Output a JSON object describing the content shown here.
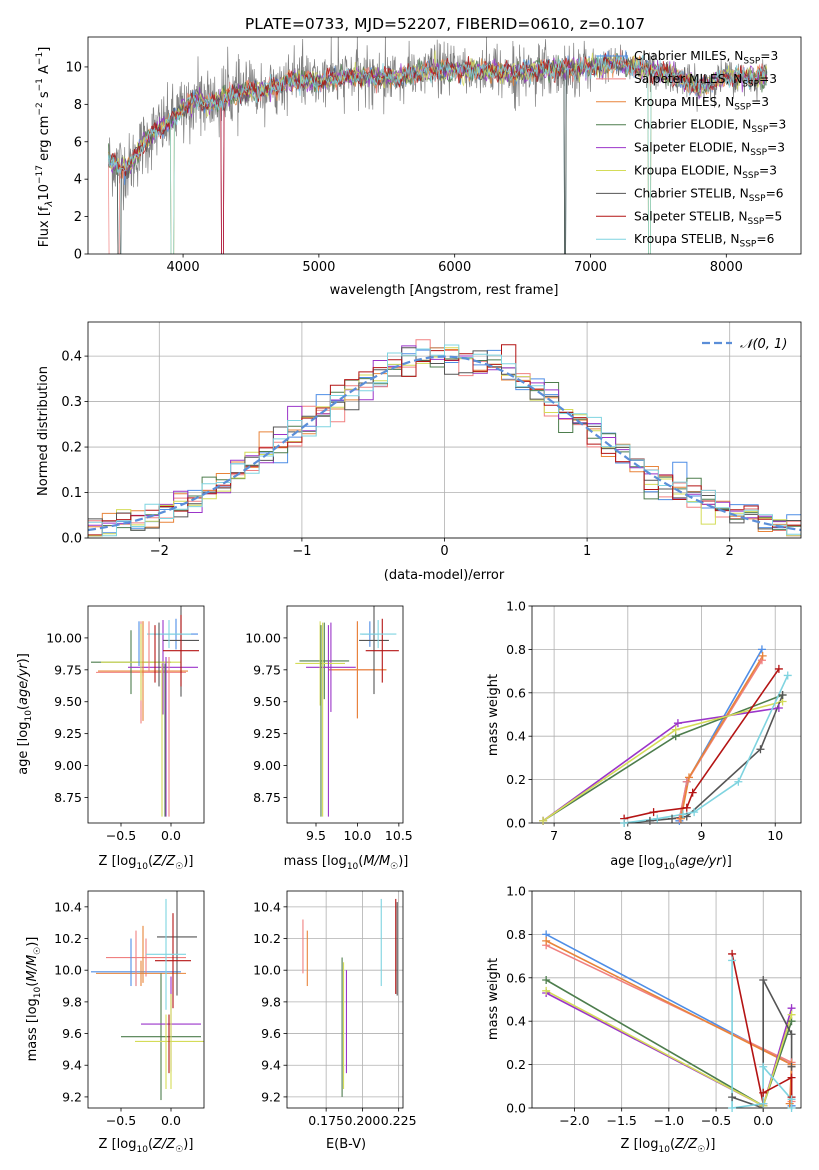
{
  "figure_title": "PLATE=0733, MJD=52207, FIBERID=0610, z=0.107",
  "colors": {
    "chabrier_miles": "#4f8ee6",
    "salpeter_miles": "#f08080",
    "kroupa_miles": "#e8843a",
    "chabrier_elodie": "#4d7d4d",
    "salpeter_elodie": "#9b35c9",
    "kroupa_elodie": "#d4dc58",
    "chabrier_stelib": "#555555",
    "salpeter_stelib": "#b41414",
    "kroupa_stelib": "#7fd4e0",
    "data": "#808080"
  },
  "chart_data": [
    {
      "id": "spectrum",
      "type": "line",
      "xlabel": "wavelength [Angstrom, rest frame]",
      "ylabel": "Flux [f_λ10⁻¹⁷ erg cm⁻² s⁻¹ A⁻¹]",
      "xlim": [
        3300,
        8550
      ],
      "ylim": [
        0,
        11.6
      ],
      "xticks": [
        "4000",
        "5000",
        "6000",
        "7000",
        "8000"
      ],
      "yticks": [
        "0",
        "2",
        "4",
        "6",
        "8",
        "10"
      ],
      "grid": false,
      "legend_position": "right",
      "continuum": {
        "x": [
          3450,
          3600,
          3700,
          3800,
          3900,
          4000,
          4100,
          4200,
          4400,
          4600,
          4800,
          5000,
          5200,
          5400,
          5600,
          5800,
          6000,
          6200,
          6400,
          6600,
          6800,
          7000,
          7200,
          7400,
          7600,
          7800,
          8000,
          8200,
          8300
        ],
        "y": [
          5.0,
          4.6,
          5.8,
          6.6,
          7.0,
          7.8,
          8.3,
          8.0,
          8.6,
          8.8,
          9.3,
          9.2,
          9.5,
          9.5,
          9.4,
          9.8,
          9.8,
          9.8,
          9.7,
          9.8,
          9.9,
          10.0,
          10.2,
          9.9,
          9.6,
          8.9,
          9.5,
          9.4,
          9.5
        ]
      },
      "legend": [
        {
          "label": "Chabrier MILES, N_SSP=3",
          "color": "#4f8ee6"
        },
        {
          "label": "Salpeter MILES, N_SSP=3",
          "color": "#f08080"
        },
        {
          "label": "Kroupa MILES, N_SSP=3",
          "color": "#e8843a"
        },
        {
          "label": "Chabrier ELODIE, N_SSP=3",
          "color": "#4d7d4d"
        },
        {
          "label": "Salpeter ELODIE, N_SSP=3",
          "color": "#9b35c9"
        },
        {
          "label": "Kroupa ELODIE, N_SSP=3",
          "color": "#d4dc58"
        },
        {
          "label": "Chabrier STELIB, N_SSP=6",
          "color": "#555555"
        },
        {
          "label": "Salpeter STELIB, N_SSP=5",
          "color": "#b41414"
        },
        {
          "label": "Kroupa STELIB, N_SSP=6",
          "color": "#7fd4e0"
        }
      ],
      "legend_parts": [
        {
          "pre": "Chabrier MILES, N",
          "sub": "SSP",
          "post": "=3"
        },
        {
          "pre": "Salpeter MILES, N",
          "sub": "SSP",
          "post": "=3"
        },
        {
          "pre": "Kroupa MILES, N",
          "sub": "SSP",
          "post": "=3"
        },
        {
          "pre": "Chabrier ELODIE, N",
          "sub": "SSP",
          "post": "=3"
        },
        {
          "pre": "Salpeter ELODIE, N",
          "sub": "SSP",
          "post": "=3"
        },
        {
          "pre": "Kroupa ELODIE, N",
          "sub": "SSP",
          "post": "=3"
        },
        {
          "pre": "Chabrier STELIB, N",
          "sub": "SSP",
          "post": "=6"
        },
        {
          "pre": "Salpeter STELIB, N",
          "sub": "SSP",
          "post": "=5"
        },
        {
          "pre": "Kroupa STELIB, N",
          "sub": "SSP",
          "post": "=6"
        }
      ]
    },
    {
      "id": "residuals",
      "type": "line",
      "xlabel": "(data-model)/error",
      "ylabel": "Normed distribution",
      "xlim": [
        -2.5,
        2.5
      ],
      "ylim": [
        0,
        0.475
      ],
      "xticks": [
        "−2",
        "−1",
        "0",
        "1",
        "2"
      ],
      "yticks": [
        "0.0",
        "0.1",
        "0.2",
        "0.3",
        "0.4"
      ],
      "grid": true,
      "legend": [
        {
          "label": "𝒩(0, 1)",
          "color": "#5b8ed8",
          "style": "dashed"
        }
      ],
      "bin_width": 0.1
    },
    {
      "id": "age_vs_Z",
      "type": "scatter",
      "xlabel": "Z [log₁₀(Z/Z☉)]",
      "ylabel": "age  [log₁₀(age/yr)]",
      "xlim": [
        -0.83,
        0.33
      ],
      "ylim": [
        8.55,
        10.25
      ],
      "xticks": [
        "−0.5",
        "0.0"
      ],
      "yticks": [
        "8.75",
        "9.00",
        "9.25",
        "9.50",
        "9.75",
        "10.00"
      ],
      "grid": false,
      "errorbars": [
        {
          "model": "Chabrier MILES",
          "x": 0.05,
          "xerr": 0.22,
          "y": 10.03,
          "yerr": 0.12
        },
        {
          "model": "Salpeter MILES",
          "x": -0.3,
          "xerr": 0.45,
          "y": 9.73,
          "yerr": 0.4
        },
        {
          "model": "Kroupa MILES",
          "x": -0.28,
          "xerr": 0.45,
          "y": 9.74,
          "yerr": 0.39
        },
        {
          "model": "Chabrier ELODIE",
          "x": -0.4,
          "xerr": 0.4,
          "y": 9.81,
          "yerr": 0.25
        },
        {
          "model": "Salpeter ELODIE",
          "x": -0.08,
          "xerr": 0.35,
          "y": 9.77,
          "yerr": 0.37
        },
        {
          "model": "Kroupa ELODIE",
          "x": -0.3,
          "xerr": 0.4,
          "y": 9.81,
          "yerr": 0.3
        },
        {
          "model": "Chabrier STELIB",
          "x": 0.1,
          "xerr": 0.18,
          "y": 9.98,
          "yerr": 0.44
        },
        {
          "model": "Salpeter STELIB",
          "x": 0.1,
          "xerr": 0.18,
          "y": 9.9,
          "yerr": 0.28
        },
        {
          "model": "Kroupa STELIB",
          "x": -0.02,
          "xerr": 0.22,
          "y": 10.03,
          "yerr": 0.11
        }
      ],
      "vertical_lines": [
        {
          "model": "Salpeter ELODIE",
          "x": -0.05,
          "y0": 8.6,
          "y1": 9.85
        },
        {
          "model": "Salpeter MILES",
          "x": -0.02,
          "y0": 8.6,
          "y1": 9.85
        },
        {
          "model": "Kroupa ELODIE",
          "x": -0.09,
          "y0": 8.6,
          "y1": 9.8
        },
        {
          "model": "Chabrier ELODIE",
          "x": -0.06,
          "y0": 8.6,
          "y1": 9.8
        },
        {
          "model": "Kroupa MILES",
          "x": -0.28,
          "y0": 9.7,
          "y1": 10.13
        },
        {
          "model": "Salpeter MILES",
          "x": -0.22,
          "y0": 9.73,
          "y1": 10.13
        },
        {
          "model": "Chabrier MILES",
          "x": -0.32,
          "y0": 9.78,
          "y1": 10.13
        },
        {
          "model": "Chabrier STELIB",
          "x": -0.12,
          "y0": 9.62,
          "y1": 10.12
        },
        {
          "model": "Salpeter STELIB",
          "x": -0.16,
          "y0": 9.65,
          "y1": 10.1
        }
      ]
    },
    {
      "id": "age_vs_mass",
      "type": "scatter",
      "xlabel": "mass [log₁₀(M/M☉)]",
      "ylabel": "",
      "xlim": [
        9.15,
        10.55
      ],
      "ylim": [
        8.55,
        10.25
      ],
      "xticks": [
        "9.5",
        "10.0",
        "10.5"
      ],
      "yticks": [
        "8.75",
        "9.00",
        "9.25",
        "9.50",
        "9.75",
        "10.00"
      ],
      "grid": false,
      "errorbars": [
        {
          "model": "Chabrier MILES",
          "x": 10.15,
          "xerr": 0.1,
          "y": 10.03,
          "yerr": 0.1
        },
        {
          "model": "Salpeter MILES",
          "x": 10.0,
          "xerr": 0.35,
          "y": 9.75,
          "yerr": 0.38
        },
        {
          "model": "Kroupa MILES",
          "x": 10.0,
          "xerr": 0.35,
          "y": 9.75,
          "yerr": 0.38
        },
        {
          "model": "Chabrier ELODIE",
          "x": 9.6,
          "xerr": 0.3,
          "y": 9.82,
          "yerr": 0.3
        },
        {
          "model": "Salpeter ELODIE",
          "x": 9.68,
          "xerr": 0.3,
          "y": 9.77,
          "yerr": 0.35
        },
        {
          "model": "Kroupa ELODIE",
          "x": 9.55,
          "xerr": 0.3,
          "y": 9.8,
          "yerr": 0.33
        },
        {
          "model": "Chabrier STELIB",
          "x": 10.2,
          "xerr": 0.18,
          "y": 9.98,
          "yerr": 0.42
        },
        {
          "model": "Salpeter STELIB",
          "x": 10.3,
          "xerr": 0.2,
          "y": 9.9,
          "yerr": 0.25
        },
        {
          "model": "Kroupa STELIB",
          "x": 10.25,
          "xerr": 0.22,
          "y": 10.03,
          "yerr": 0.11
        }
      ],
      "vertical_lines": [
        {
          "model": "Salpeter ELODIE",
          "x": 9.65,
          "y0": 8.6,
          "y1": 10.1
        },
        {
          "model": "Kroupa ELODIE",
          "x": 9.58,
          "y0": 8.6,
          "y1": 10.12
        },
        {
          "model": "Chabrier ELODIE",
          "x": 9.56,
          "y0": 8.6,
          "y1": 10.1
        }
      ]
    },
    {
      "id": "massweight_vs_age",
      "type": "line",
      "xlabel": "age  [log₁₀(age/yr)]",
      "ylabel": "mass weight",
      "xlim": [
        6.7,
        10.35
      ],
      "ylim": [
        0,
        1.0
      ],
      "xticks": [
        "7",
        "8",
        "9",
        "10"
      ],
      "yticks": [
        "0.0",
        "0.2",
        "0.4",
        "0.6",
        "0.8",
        "1.0"
      ],
      "grid": true,
      "series": [
        {
          "model": "Chabrier MILES",
          "color": "#4f8ee6",
          "x": [
            8.7,
            8.8,
            9.82
          ],
          "y": [
            0.01,
            0.19,
            0.8
          ]
        },
        {
          "model": "Salpeter MILES",
          "color": "#f08080",
          "x": [
            8.7,
            8.8,
            9.82
          ],
          "y": [
            0.02,
            0.19,
            0.75
          ]
        },
        {
          "model": "Kroupa MILES",
          "color": "#e8843a",
          "x": [
            8.72,
            8.83,
            9.83
          ],
          "y": [
            0.02,
            0.21,
            0.77
          ]
        },
        {
          "model": "Chabrier ELODIE",
          "color": "#4d7d4d",
          "x": [
            6.85,
            8.65,
            10.1
          ],
          "y": [
            0.01,
            0.4,
            0.59
          ]
        },
        {
          "model": "Salpeter ELODIE",
          "color": "#9b35c9",
          "x": [
            6.85,
            8.68,
            10.05
          ],
          "y": [
            0.01,
            0.46,
            0.53
          ]
        },
        {
          "model": "Kroupa ELODIE",
          "color": "#d4dc58",
          "x": [
            6.85,
            8.65,
            10.1
          ],
          "y": [
            0.01,
            0.43,
            0.56
          ]
        },
        {
          "model": "Chabrier STELIB",
          "color": "#555555",
          "x": [
            7.95,
            8.3,
            8.6,
            8.8,
            9.8,
            10.1
          ],
          "y": [
            0.0,
            0.01,
            0.02,
            0.03,
            0.34,
            0.59
          ]
        },
        {
          "model": "Salpeter STELIB",
          "color": "#b41414",
          "x": [
            7.95,
            8.35,
            8.8,
            8.88,
            10.05
          ],
          "y": [
            0.02,
            0.05,
            0.07,
            0.14,
            0.71
          ]
        },
        {
          "model": "Kroupa STELIB",
          "color": "#7fd4e0",
          "x": [
            7.95,
            8.4,
            8.75,
            8.9,
            9.5,
            10.17
          ],
          "y": [
            0.0,
            0.02,
            0.04,
            0.05,
            0.19,
            0.68
          ]
        }
      ]
    },
    {
      "id": "mass_vs_Z",
      "type": "scatter",
      "xlabel": "Z [log₁₀(Z/Z☉)]",
      "ylabel": "mass [log₁₀(M/M☉)]",
      "xlim": [
        -0.83,
        0.33
      ],
      "ylim": [
        9.13,
        10.5
      ],
      "xticks": [
        "−0.5",
        "0.0"
      ],
      "yticks": [
        "9.2",
        "9.4",
        "9.6",
        "9.8",
        "10.0",
        "10.2",
        "10.4"
      ],
      "grid": false,
      "errorbars": [
        {
          "model": "Chabrier MILES",
          "x": -0.35,
          "xerr": 0.45,
          "y": 9.99,
          "yerr": 0.09
        },
        {
          "model": "Salpeter MILES",
          "x": -0.25,
          "xerr": 0.4,
          "y": 10.08,
          "yerr": 0.12
        },
        {
          "model": "Kroupa MILES",
          "x": -0.3,
          "xerr": 0.45,
          "y": 9.98,
          "yerr": 0.08
        },
        {
          "model": "Chabrier ELODIE",
          "x": -0.1,
          "xerr": 0.4,
          "y": 9.58,
          "yerr": 0.4
        },
        {
          "model": "Salpeter ELODIE",
          "x": 0.0,
          "xerr": 0.3,
          "y": 9.66,
          "yerr": 0.3
        },
        {
          "model": "Kroupa ELODIE",
          "x": 0.0,
          "xerr": 0.36,
          "y": 9.55,
          "yerr": 0.3
        },
        {
          "model": "Chabrier STELIB",
          "x": 0.06,
          "xerr": 0.2,
          "y": 10.21,
          "yerr": 0.37
        },
        {
          "model": "Salpeter STELIB",
          "x": 0.02,
          "xerr": 0.18,
          "y": 10.06,
          "yerr": 0.3
        },
        {
          "model": "Kroupa STELIB",
          "x": -0.05,
          "xerr": 0.2,
          "y": 10.1,
          "yerr": 0.35
        }
      ],
      "vertical_lines": [
        {
          "model": "Salpeter MILES",
          "x": -0.35,
          "y0": 9.9,
          "y1": 10.25
        },
        {
          "model": "Kroupa MILES",
          "x": -0.28,
          "y0": 9.92,
          "y1": 10.28
        },
        {
          "model": "Chabrier MILES",
          "x": -0.4,
          "y0": 9.9,
          "y1": 10.2
        },
        {
          "model": "Kroupa ELODIE",
          "x": -0.05,
          "y0": 9.25,
          "y1": 9.72
        },
        {
          "model": "Salpeter STELIB",
          "x": -0.02,
          "y0": 9.35,
          "y1": 9.72
        }
      ]
    },
    {
      "id": "mass_vs_EBV",
      "type": "scatter",
      "xlabel": "E(B-V)",
      "ylabel": "",
      "xlim": [
        0.148,
        0.228
      ],
      "ylim": [
        9.13,
        10.5
      ],
      "xticks": [
        "0.175",
        "0.200",
        "0.225"
      ],
      "yticks": [
        "9.2",
        "9.4",
        "9.6",
        "9.8",
        "10.0",
        "10.2",
        "10.4"
      ],
      "grid": true,
      "segments": [
        {
          "model": "Salpeter MILES",
          "x": 0.159,
          "y0": 9.98,
          "y1": 10.32
        },
        {
          "model": "Kroupa MILES",
          "x": 0.162,
          "y0": 9.9,
          "y1": 10.25
        },
        {
          "model": "Chabrier ELODIE",
          "x": 0.186,
          "y0": 9.2,
          "y1": 10.08
        },
        {
          "model": "Kroupa ELODIE",
          "x": 0.187,
          "y0": 9.25,
          "y1": 10.05
        },
        {
          "model": "Salpeter ELODIE",
          "x": 0.189,
          "y0": 9.35,
          "y1": 10.0
        },
        {
          "model": "Kroupa STELIB",
          "x": 0.213,
          "y0": 9.9,
          "y1": 10.45
        },
        {
          "model": "Salpeter STELIB",
          "x": 0.223,
          "y0": 9.85,
          "y1": 10.45
        },
        {
          "model": "Chabrier STELIB",
          "x": 0.224,
          "y0": 9.84,
          "y1": 10.43
        }
      ]
    },
    {
      "id": "massweight_vs_Z",
      "type": "line",
      "xlabel": "Z [log₁₀(Z/Z☉)]",
      "ylabel": "mass weight",
      "xlim": [
        -2.45,
        0.4
      ],
      "ylim": [
        0,
        1.0
      ],
      "xticks": [
        "−2.0",
        "−1.5",
        "−1.0",
        "−0.5",
        "0.0"
      ],
      "yticks": [
        "0.0",
        "0.2",
        "0.4",
        "0.6",
        "0.8",
        "1.0"
      ],
      "grid": true,
      "series": [
        {
          "model": "Chabrier MILES",
          "color": "#4f8ee6",
          "x": [
            -2.3,
            0.3,
            0.3
          ],
          "y": [
            0.8,
            0.2,
            0.01
          ]
        },
        {
          "model": "Salpeter MILES",
          "color": "#f08080",
          "x": [
            -2.3,
            0.3,
            0.3
          ],
          "y": [
            0.75,
            0.21,
            0.03
          ]
        },
        {
          "model": "Kroupa MILES",
          "color": "#e8843a",
          "x": [
            -2.3,
            0.3,
            0.28
          ],
          "y": [
            0.77,
            0.2,
            0.02
          ]
        },
        {
          "model": "Chabrier ELODIE",
          "color": "#4d7d4d",
          "x": [
            -2.3,
            0.0,
            0.3
          ],
          "y": [
            0.59,
            0.01,
            0.4
          ]
        },
        {
          "model": "Salpeter ELODIE",
          "color": "#9b35c9",
          "x": [
            -2.3,
            0.0,
            0.3
          ],
          "y": [
            0.53,
            0.01,
            0.46
          ]
        },
        {
          "model": "Kroupa ELODIE",
          "color": "#d4dc58",
          "x": [
            -2.3,
            0.0,
            0.3
          ],
          "y": [
            0.54,
            0.01,
            0.43
          ]
        },
        {
          "model": "Chabrier STELIB",
          "color": "#555555",
          "x": [
            -0.33,
            0.0,
            0.0,
            0.3,
            0.3
          ],
          "y": [
            0.05,
            0.0,
            0.59,
            0.34,
            0.19
          ]
        },
        {
          "model": "Salpeter STELIB",
          "color": "#b41414",
          "x": [
            -0.33,
            0.0,
            0.0,
            0.3,
            0.3
          ],
          "y": [
            0.71,
            0.02,
            0.07,
            0.14,
            0.05
          ]
        },
        {
          "model": "Kroupa STELIB",
          "color": "#7fd4e0",
          "x": [
            -0.33,
            -0.33,
            0.0,
            0.0,
            0.3,
            0.3
          ],
          "y": [
            0.68,
            0.0,
            0.02,
            0.19,
            0.04,
            0.0
          ]
        }
      ]
    }
  ]
}
